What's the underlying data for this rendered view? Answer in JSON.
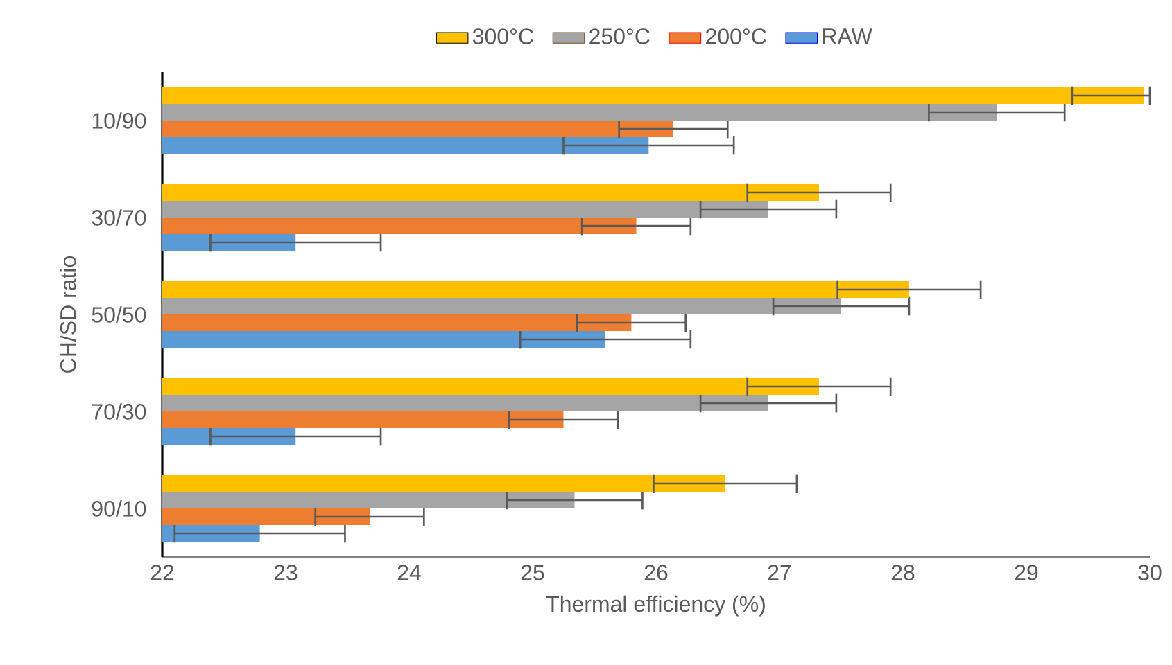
{
  "chart_data": {
    "type": "bar",
    "orientation": "horizontal",
    "xlabel": "Thermal efficiency (%)",
    "ylabel": "CH/SD ratio",
    "categories": [
      "10/90",
      "30/70",
      "50/50",
      "70/30",
      "90/10"
    ],
    "series": [
      {
        "name": "RAW",
        "color": "#5b9bd5",
        "values": [
          25.94,
          23.08,
          25.59,
          23.08,
          22.79
        ],
        "errors": [
          0.69,
          0.69,
          0.69,
          0.69,
          0.69
        ]
      },
      {
        "name": "200°C",
        "color": "#ed7d31",
        "values": [
          26.14,
          25.84,
          25.8,
          25.25,
          23.68
        ],
        "errors": [
          0.44,
          0.44,
          0.44,
          0.44,
          0.44
        ]
      },
      {
        "name": "250°C",
        "color": "#a5a5a5",
        "values": [
          28.76,
          26.91,
          27.5,
          26.91,
          25.34
        ],
        "errors": [
          0.55,
          0.55,
          0.55,
          0.55,
          0.55
        ]
      },
      {
        "name": "300°C",
        "color": "#ffc000",
        "values": [
          29.95,
          27.32,
          28.05,
          27.32,
          26.56
        ],
        "errors": [
          [
            29.37,
            30
          ],
          0.58,
          0.58,
          0.58,
          0.58
        ]
      }
    ],
    "xlim": [
      22,
      30
    ],
    "xticks": [
      22,
      23,
      24,
      25,
      26,
      27,
      28,
      29,
      30
    ],
    "grid": false,
    "legend": "top"
  }
}
